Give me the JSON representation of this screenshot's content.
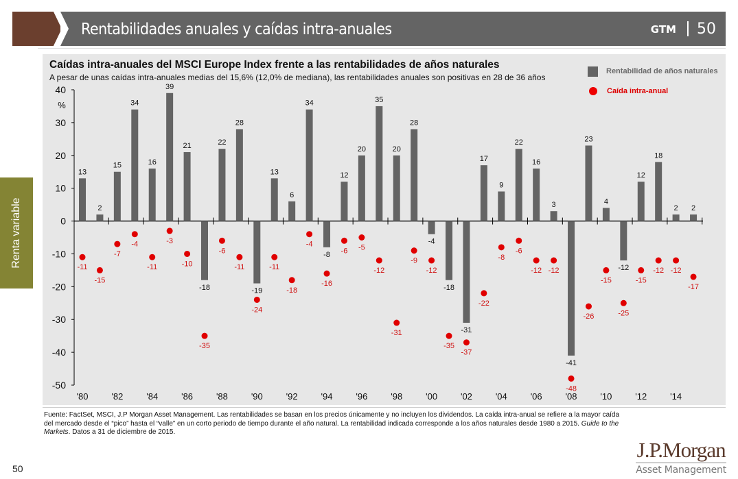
{
  "header": {
    "title": "Rentabilidades anuales y caídas intra-anuales",
    "gtm_label": "GTM",
    "page_number": "50"
  },
  "side_tab": {
    "label": "Renta variable"
  },
  "legend": {
    "bar_label": "Rentabilidad de años naturales",
    "dot_label": "Caída intra-anual"
  },
  "colors": {
    "bar": "#646464",
    "dot": "#e00000",
    "dot_label": "#d01010",
    "side_tab": "#848434",
    "brand_brown": "#6b3f2e"
  },
  "footnote": {
    "text_before_italic": "Fuente: FactSet, MSCI, J.P Morgan Asset Management. Las rentabilidades se basan en los precios únicamente y no incluyen los dividendos. La caída intra-anual se refiere a la mayor caída del mercado desde el “pico” hasta el “valle” en un corto periodo de tiempo durante el año natural. La rentabilidad indicada corresponde a los años naturales desde 1980 a 2015. ",
    "italic": "Guide to the Markets",
    "text_after_italic": ". Datos a 31 de diciembre de 2015."
  },
  "page_footer_number": "50",
  "logo": {
    "main": "J.P.Morgan",
    "sub": "Asset Management"
  },
  "chart_data": {
    "type": "bar",
    "title": "Caídas intra-anuales del MSCI Europe Index frente a las rentabilidades de años naturales",
    "subtitle": "A pesar de unas caídas intra-anuales medias del 15,6% (12,0% de mediana), las rentabilidades anuales son positivas en 28 de 36 años",
    "xlabel": "",
    "ylabel": "%",
    "ylim": [
      -50,
      40
    ],
    "yticks": [
      40,
      30,
      20,
      10,
      0,
      -10,
      -20,
      -30,
      -40,
      -50
    ],
    "grid": false,
    "legend_position": "top-right",
    "categories": [
      "1980",
      "1981",
      "1982",
      "1983",
      "1984",
      "1985",
      "1986",
      "1987",
      "1988",
      "1989",
      "1990",
      "1991",
      "1992",
      "1993",
      "1994",
      "1995",
      "1996",
      "1997",
      "1998",
      "1999",
      "2000",
      "2001",
      "2002",
      "2003",
      "2004",
      "2005",
      "2006",
      "2007",
      "2008",
      "2009",
      "2010",
      "2011",
      "2012",
      "2013",
      "2014",
      "2015"
    ],
    "xtick_labels": [
      "'80",
      "'82",
      "'84",
      "'86",
      "'88",
      "'90",
      "'92",
      "'94",
      "'96",
      "'98",
      "'00",
      "'02",
      "'04",
      "'06",
      "'08",
      "'10",
      "'12",
      "'14"
    ],
    "series": [
      {
        "name": "Rentabilidad de años naturales",
        "type": "bar",
        "values": [
          13,
          2,
          15,
          34,
          16,
          39,
          21,
          -18,
          22,
          28,
          -19,
          13,
          6,
          34,
          -8,
          12,
          20,
          35,
          20,
          28,
          -4,
          -18,
          -31,
          17,
          9,
          22,
          16,
          3,
          -41,
          23,
          4,
          -12,
          12,
          18,
          2,
          2
        ]
      },
      {
        "name": "Caída intra-anual",
        "type": "scatter",
        "values": [
          -11,
          -15,
          -7,
          -4,
          -11,
          -3,
          -10,
          -35,
          -6,
          -11,
          -24,
          -11,
          -18,
          -4,
          -16,
          -6,
          -5,
          -12,
          -31,
          -9,
          -12,
          -35,
          -37,
          -22,
          -8,
          -6,
          -12,
          -12,
          -48,
          -26,
          -15,
          -25,
          -15,
          -12,
          -12,
          -17
        ]
      }
    ]
  }
}
